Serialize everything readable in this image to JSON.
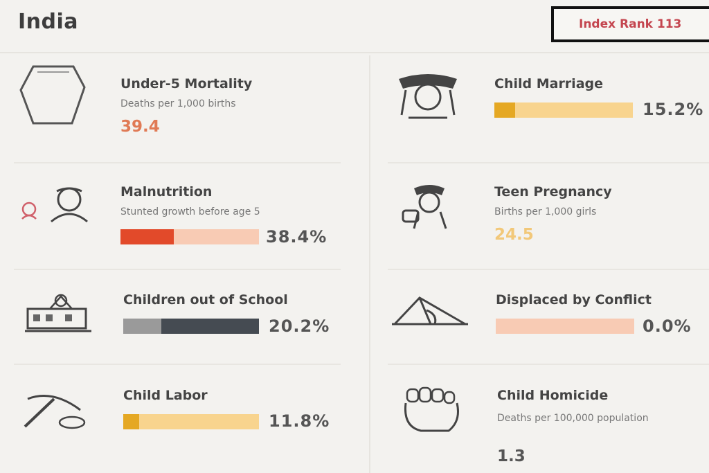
{
  "country": "India",
  "index_rank_label": "Index Rank 113",
  "indicators": {
    "under5": {
      "title": "Under-5 Mortality",
      "subtitle": "Deaths per 1,000 births",
      "value": "39.4",
      "color": "#e07a55",
      "icon": "shield-icon"
    },
    "child_marriage": {
      "title": "Child Marriage",
      "value_text": "15.2%",
      "value": 15.2,
      "track_color": "#f8d48e",
      "fill_color": "#e5a823",
      "icon": "veil-icon"
    },
    "malnutrition": {
      "title": "Malnutrition",
      "subtitle": "Stunted growth before age 5",
      "value_text": "38.4%",
      "value": 38.4,
      "track_color": "#f8cbb4",
      "fill_color": "#e24a2a",
      "icon": "children-icon"
    },
    "teen_pregnancy": {
      "title": "Teen Pregnancy",
      "subtitle": "Births per 1,000 girls",
      "value": "24.5",
      "color": "#f2c879",
      "icon": "mother-baby-icon"
    },
    "out_of_school": {
      "title": "Children out of School",
      "value_text": "20.2%",
      "value": 20.2,
      "track_color": "#9a9a9a",
      "fill_color": "#454b52",
      "icon": "school-icon"
    },
    "displaced": {
      "title": "Displaced by Conflict",
      "value_text": "0.0%",
      "value": 0.0,
      "track_color": "#f8cbb4",
      "fill_color": "#e24a2a",
      "icon": "tent-icon"
    },
    "child_labor": {
      "title": "Child Labor",
      "value_text": "11.8%",
      "value": 11.8,
      "track_color": "#f8d48e",
      "fill_color": "#e5a823",
      "icon": "pickaxe-icon"
    },
    "homicide": {
      "title": "Child Homicide",
      "subtitle": "Deaths per 100,000 population",
      "value": "1.3",
      "color": "#555555",
      "icon": "fist-icon"
    }
  }
}
